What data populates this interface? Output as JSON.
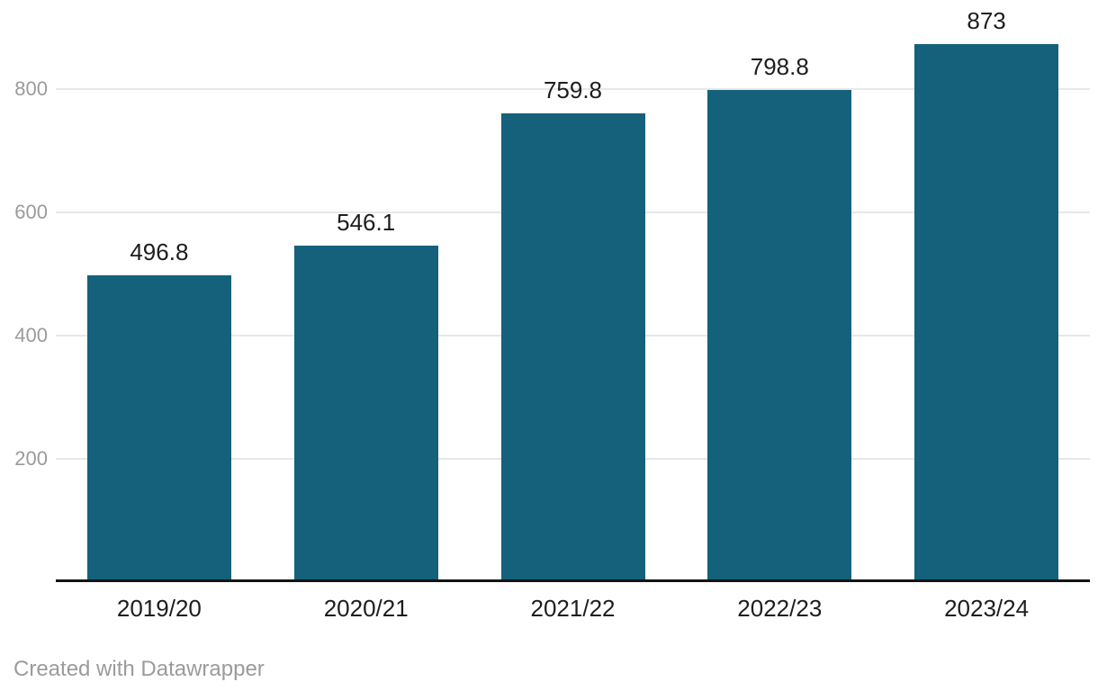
{
  "chart_data": {
    "type": "bar",
    "categories": [
      "2019/20",
      "2020/21",
      "2021/22",
      "2022/23",
      "2023/24"
    ],
    "values": [
      496.8,
      546.1,
      759.8,
      798.8,
      873
    ],
    "value_labels": [
      "496.8",
      "546.1",
      "759.8",
      "798.8",
      "873"
    ],
    "title": "",
    "xlabel": "",
    "ylabel": "",
    "yticks": [
      200,
      400,
      600,
      800
    ],
    "ylim": [
      0,
      900
    ],
    "grid": true,
    "legend": "none",
    "colors": {
      "bar": "#15617c",
      "gridline": "#e8e8e8",
      "axis_line": "#141414",
      "y_tick_label": "#9b9b9b",
      "value_label": "#1d1d1d",
      "x_tick_label": "#1d1d1d"
    }
  },
  "footer": {
    "credit": "Created with Datawrapper"
  }
}
